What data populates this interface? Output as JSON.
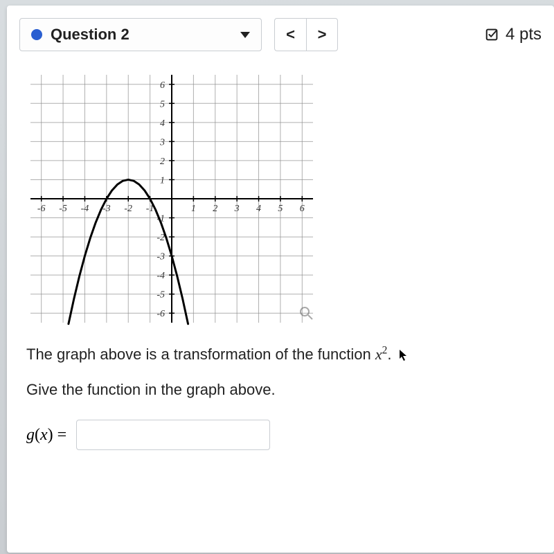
{
  "header": {
    "question_label": "Question 2",
    "dot_color": "#2a5fd1",
    "prev_glyph": "<",
    "next_glyph": ">",
    "points_label": "4 pts"
  },
  "graph": {
    "type": "scatter-line",
    "xlim": [
      -6.5,
      6.5
    ],
    "ylim": [
      -6.5,
      6.5
    ],
    "xtick_step": 1,
    "ytick_step": 1,
    "xticks": [
      -6,
      -5,
      -4,
      -3,
      -2,
      -1,
      1,
      2,
      3,
      4,
      5,
      6
    ],
    "yticks": [
      -6,
      -5,
      -4,
      -3,
      -2,
      -1,
      1,
      2,
      3,
      4,
      5,
      6
    ],
    "xtick_labels": [
      "-6",
      "-5",
      "-4",
      "-3",
      "-2",
      "-1",
      "1",
      "2",
      "3",
      "4",
      "5",
      "6"
    ],
    "ytick_labels": [
      "-6",
      "-5",
      "-4",
      "-3",
      "-2",
      "-1",
      "1",
      "2",
      "3",
      "4",
      "5",
      "6"
    ],
    "grid_color": "#8e8e8e",
    "axis_color": "#000000",
    "curve_color": "#000000",
    "curve_width": 3,
    "grid_width": 1,
    "background_color": "#ffffff",
    "label_fontsize": 14,
    "label_font": "italic serif",
    "curve": {
      "kind": "parabola",
      "vertex": [
        -2,
        1
      ],
      "a": -1,
      "domain": [
        -4.75,
        0.75
      ],
      "sampled": [
        [
          -4.75,
          -6.5625
        ],
        [
          -4.5,
          -5.25
        ],
        [
          -4.25,
          -4.0625
        ],
        [
          -4,
          -3
        ],
        [
          -3.75,
          -2.0625
        ],
        [
          -3.5,
          -1.25
        ],
        [
          -3.25,
          -0.5625
        ],
        [
          -3,
          0
        ],
        [
          -2.75,
          0.4375
        ],
        [
          -2.5,
          0.75
        ],
        [
          -2.25,
          0.9375
        ],
        [
          -2,
          1
        ],
        [
          -1.75,
          0.9375
        ],
        [
          -1.5,
          0.75
        ],
        [
          -1.25,
          0.4375
        ],
        [
          -1,
          0
        ],
        [
          -0.75,
          -0.5625
        ],
        [
          -0.5,
          -1.25
        ],
        [
          -0.25,
          -2.0625
        ],
        [
          0,
          -3
        ],
        [
          0.25,
          -4.0625
        ],
        [
          0.5,
          -5.25
        ],
        [
          0.75,
          -6.5625
        ]
      ]
    }
  },
  "prompt": {
    "line1_pre": "The graph above is a transformation of the function ",
    "func_base": "x",
    "func_exp": "2",
    "line1_post": ".",
    "line2": "Give the function in the graph above."
  },
  "answer": {
    "lhs_g": "g",
    "lhs_open": "(",
    "lhs_var": "x",
    "lhs_close": ")",
    "lhs_eq": "=",
    "input_value": ""
  },
  "colors": {
    "border": "#c9cdd2",
    "text": "#222222",
    "page_bg": "#ffffff"
  }
}
